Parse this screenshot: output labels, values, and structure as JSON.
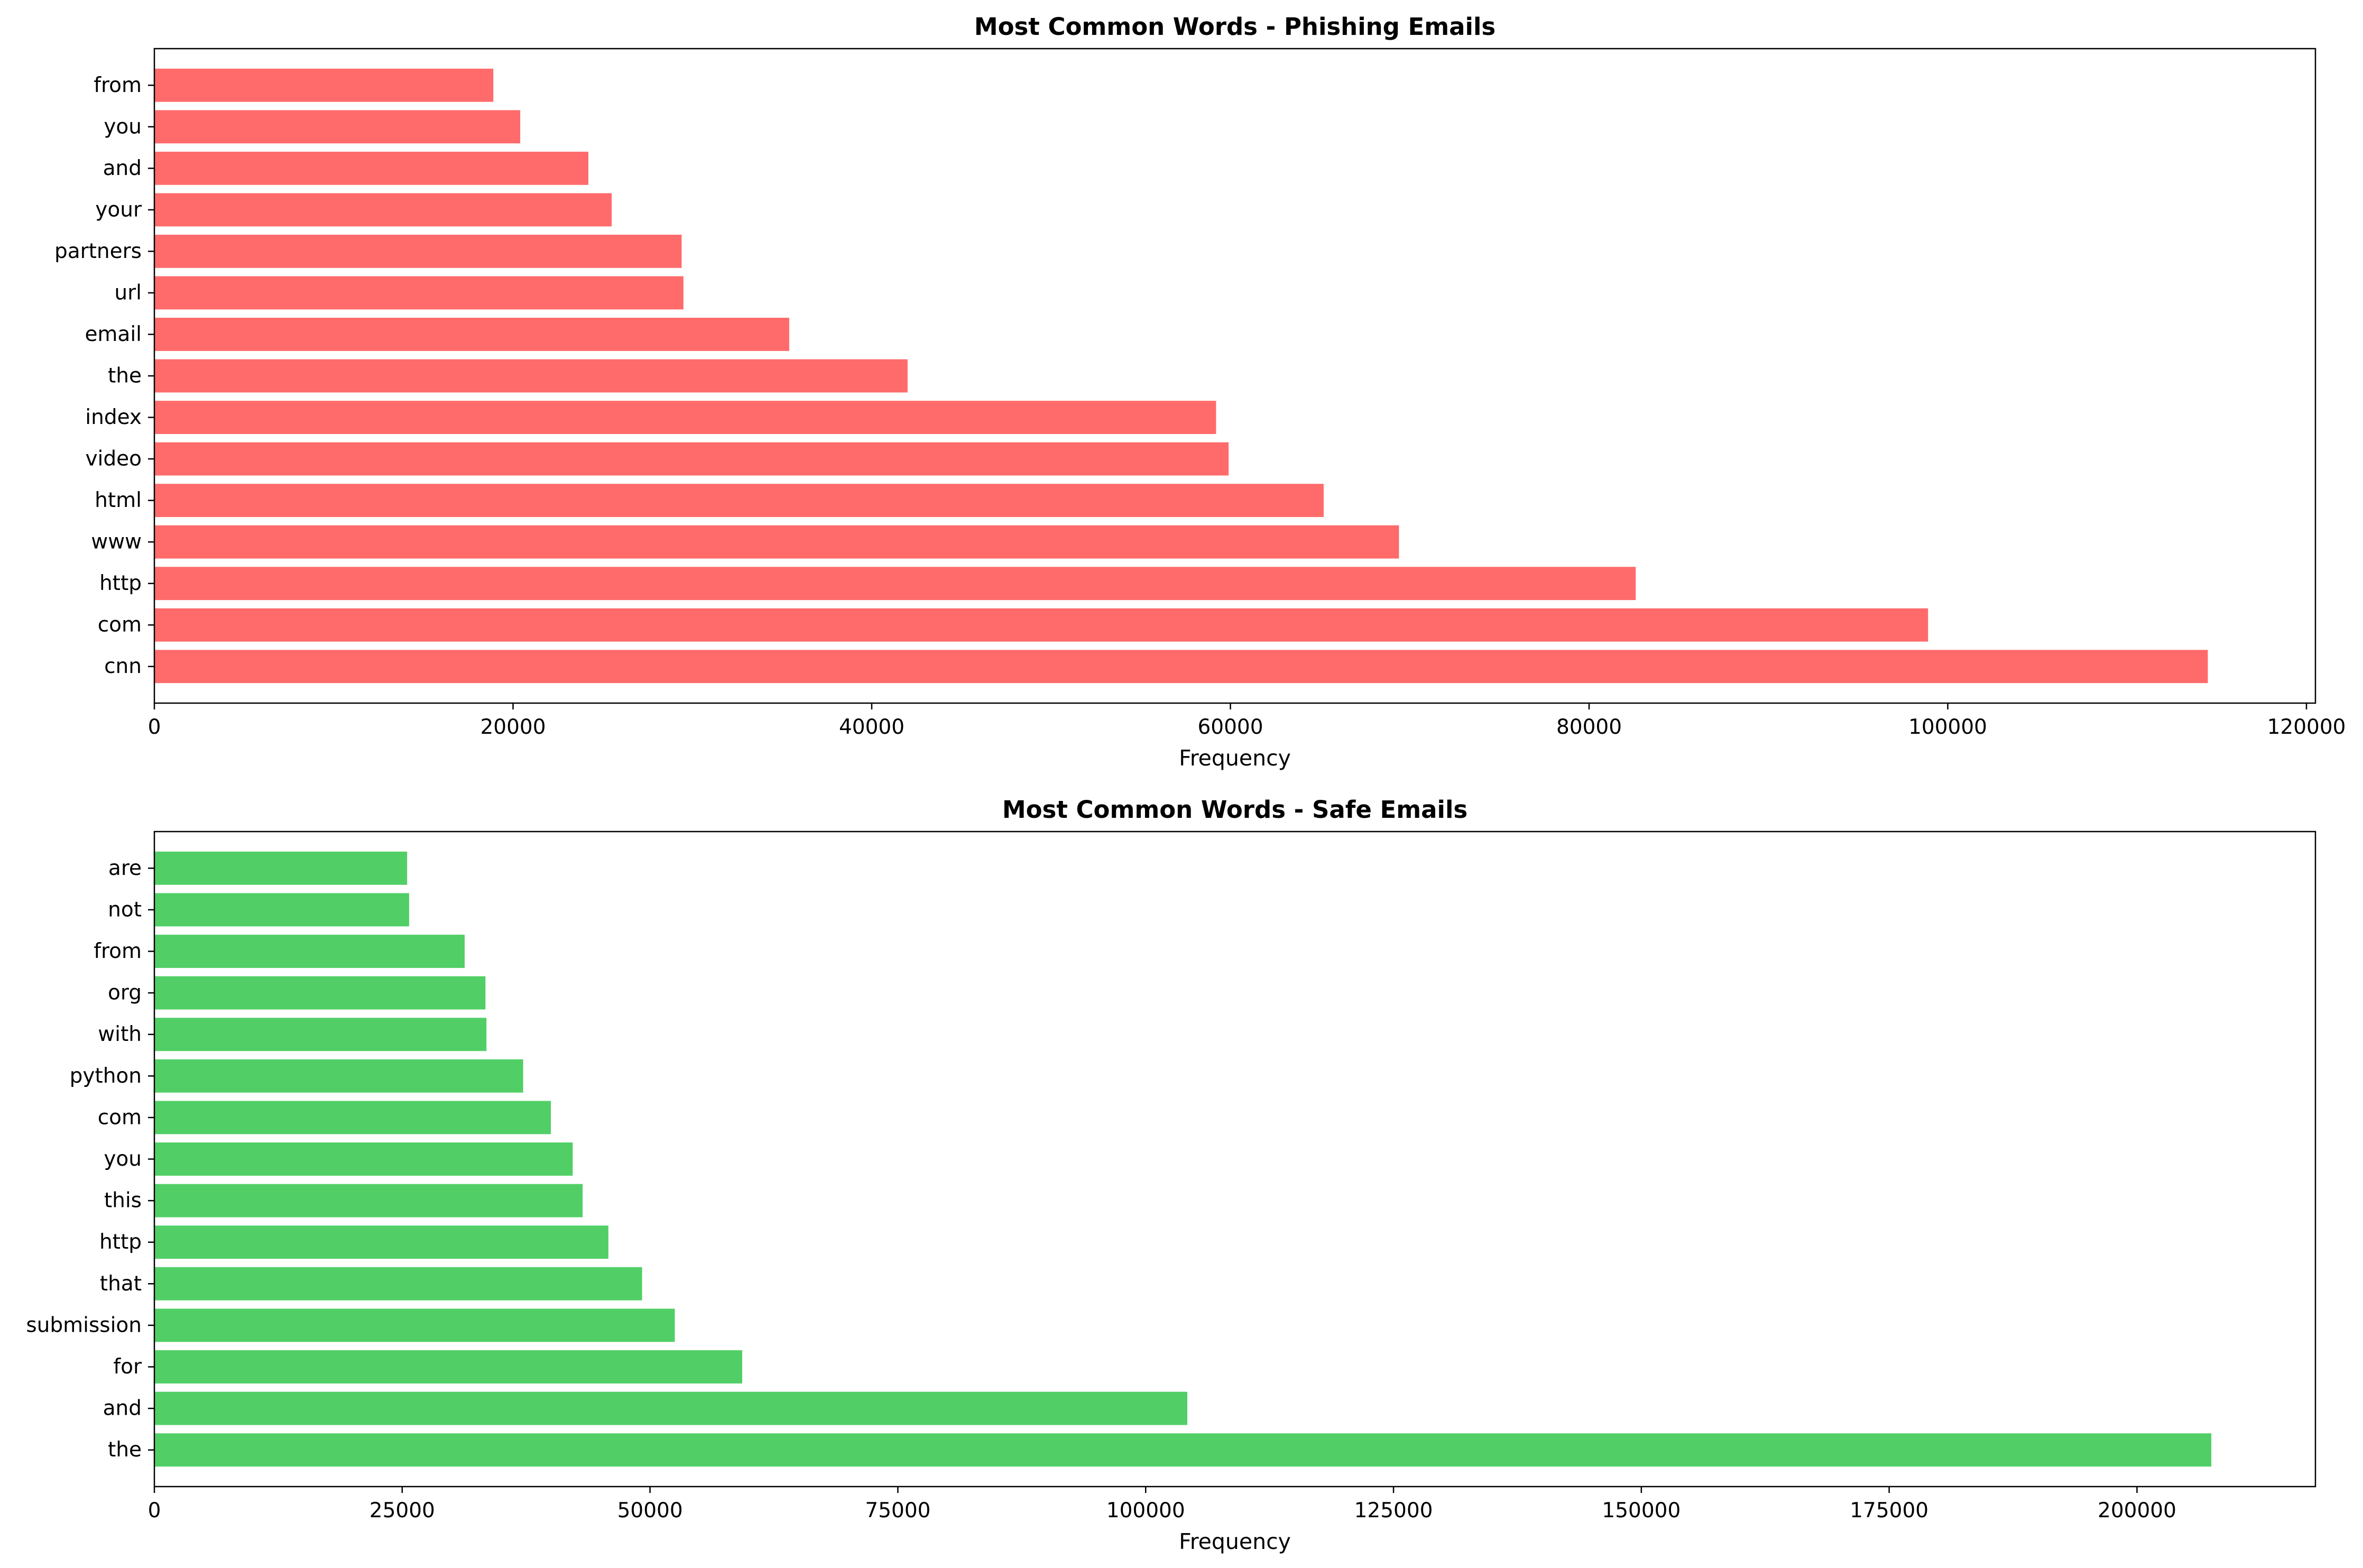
{
  "chart_data": [
    {
      "type": "bar",
      "orientation": "horizontal",
      "title": "Most Common Words - Phishing Emails",
      "xlabel": "Frequency",
      "ylabel": "",
      "xlim": [
        0,
        120500
      ],
      "xticks": [
        0,
        20000,
        40000,
        60000,
        80000,
        100000,
        120000
      ],
      "xtick_labels": [
        "0",
        "20000",
        "40000",
        "60000",
        "80000",
        "100000",
        "120000"
      ],
      "grid": false,
      "legend": "none",
      "color": "#ff6b6b",
      "categories": [
        "cnn",
        "com",
        "http",
        "www",
        "html",
        "video",
        "index",
        "the",
        "email",
        "url",
        "partners",
        "your",
        "and",
        "you",
        "from"
      ],
      "values": [
        114500,
        98900,
        82600,
        69400,
        65200,
        59900,
        59200,
        42000,
        35400,
        29500,
        29400,
        25500,
        24200,
        20400,
        18900
      ]
    },
    {
      "type": "bar",
      "orientation": "horizontal",
      "title": "Most Common Words - Safe Emails",
      "xlabel": "Frequency",
      "ylabel": "",
      "xlim": [
        0,
        218000
      ],
      "xticks": [
        0,
        25000,
        50000,
        75000,
        100000,
        125000,
        150000,
        175000,
        200000
      ],
      "xtick_labels": [
        "0",
        "25000",
        "50000",
        "75000",
        "100000",
        "125000",
        "150000",
        "175000",
        "200000"
      ],
      "grid": false,
      "legend": "none",
      "color": "#51cf66",
      "categories": [
        "the",
        "and",
        "for",
        "submission",
        "that",
        "http",
        "this",
        "you",
        "com",
        "python",
        "with",
        "org",
        "from",
        "not",
        "are"
      ],
      "values": [
        207500,
        104200,
        59300,
        52500,
        49200,
        45800,
        43200,
        42200,
        40000,
        37200,
        33500,
        33400,
        31300,
        25700,
        25500
      ]
    }
  ]
}
